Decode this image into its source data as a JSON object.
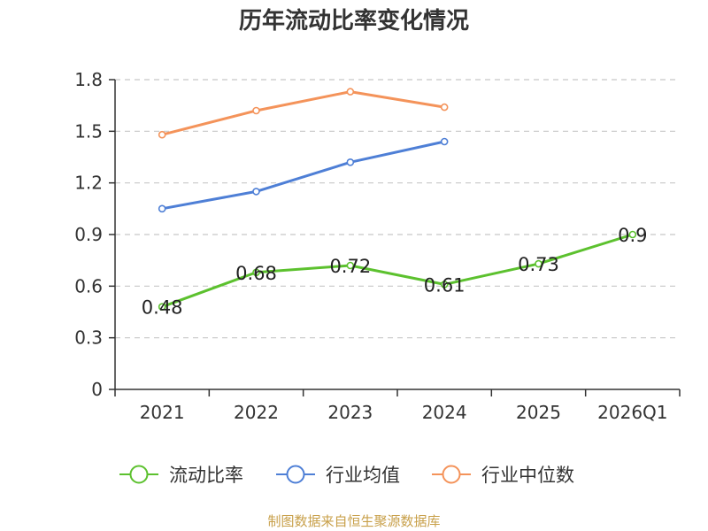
{
  "chart_data": {
    "type": "line",
    "title": "历年流动比率变化情况",
    "categories": [
      "2021",
      "2022",
      "2023",
      "2024",
      "2025",
      "2026Q1"
    ],
    "series": [
      {
        "name": "流动比率",
        "color": "#5cc12e",
        "values": [
          0.48,
          0.68,
          0.72,
          0.61,
          0.73,
          0.9
        ],
        "labels": [
          "0.48",
          "0.68",
          "0.72",
          "0.61",
          "0.73",
          "0.9"
        ]
      },
      {
        "name": "行业均值",
        "color": "#4e7fd6",
        "values": [
          1.05,
          1.15,
          1.32,
          1.44,
          null,
          null
        ]
      },
      {
        "name": "行业中位数",
        "color": "#f4935a",
        "values": [
          1.48,
          1.62,
          1.73,
          1.64,
          null,
          null
        ]
      }
    ],
    "yticks": [
      0,
      0.3,
      0.6,
      0.9,
      1.2,
      1.5,
      1.8
    ],
    "ytick_labels": [
      "0",
      "0.3",
      "0.6",
      "0.9",
      "1.2",
      "1.5",
      "1.8"
    ],
    "ylim": [
      0,
      1.8
    ],
    "grid": true,
    "legend_position": "bottom",
    "xlabel": "",
    "ylabel": ""
  },
  "source": "制图数据来自恒生聚源数据库"
}
